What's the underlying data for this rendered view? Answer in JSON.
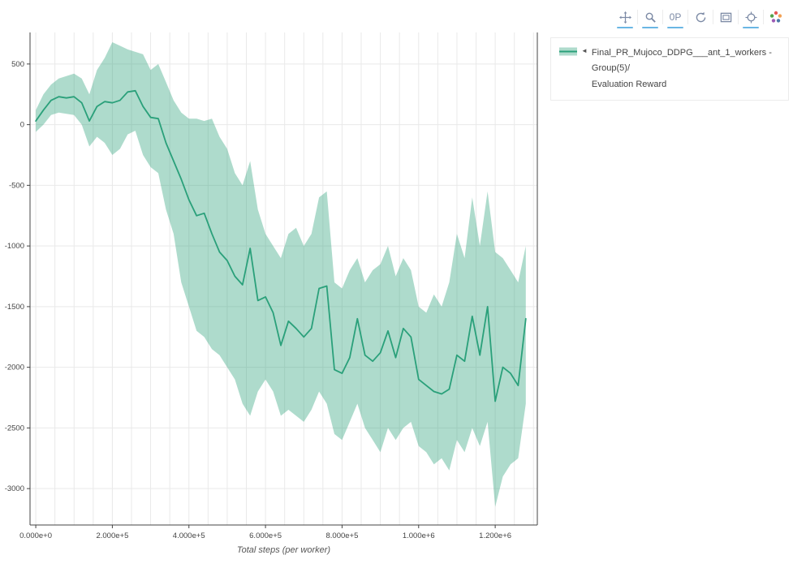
{
  "toolbar": {
    "icons": [
      {
        "name": "pan",
        "active": true
      },
      {
        "name": "box-zoom",
        "active": true
      },
      {
        "name": "zoom-in-out",
        "active": true,
        "text": "0P"
      },
      {
        "name": "autoscale",
        "active": false
      },
      {
        "name": "save-image",
        "active": false
      },
      {
        "name": "spikelines",
        "active": true
      },
      {
        "name": "plotly-logo",
        "active": false
      }
    ]
  },
  "legend": {
    "toggle_icon": "◄",
    "label_line1": "Final_PR_Mujoco_DDPG___ant_1_workers - Group(5)/",
    "label_line2": "Evaluation Reward"
  },
  "chart_data": {
    "type": "line",
    "title": "",
    "xlabel": "Total steps (per worker)",
    "ylabel": "",
    "legend_position": "right",
    "grid": true,
    "xlim": [
      -15000,
      1310000
    ],
    "ylim": [
      -3300,
      760
    ],
    "x_gridline_step": 50000,
    "xticks": {
      "values": [
        0,
        200000,
        400000,
        600000,
        800000,
        1000000,
        1200000
      ],
      "labels": [
        "0.000e+0",
        "2.000e+5",
        "4.000e+5",
        "6.000e+5",
        "8.000e+5",
        "1.000e+6",
        "1.200e+6"
      ]
    },
    "yticks": {
      "values": [
        500,
        0,
        -500,
        -1000,
        -1500,
        -2000,
        -2500,
        -3000
      ],
      "labels": [
        "500",
        "0",
        "-500",
        "-1000",
        "-1500",
        "-2000",
        "-2500",
        "-3000"
      ]
    },
    "colors": {
      "line": "#2aa07a",
      "band": "rgba(42,160,122,0.38)",
      "grid": "#e9e9e9",
      "axis": "#444444",
      "tick_text": "#444444",
      "axis_title": "#555555"
    },
    "series": [
      {
        "name": "Evaluation Reward",
        "x": [
          0,
          20000,
          40000,
          60000,
          80000,
          100000,
          120000,
          140000,
          160000,
          180000,
          200000,
          220000,
          240000,
          260000,
          280000,
          300000,
          320000,
          340000,
          360000,
          380000,
          400000,
          420000,
          440000,
          460000,
          480000,
          500000,
          520000,
          540000,
          560000,
          580000,
          600000,
          620000,
          640000,
          660000,
          680000,
          700000,
          720000,
          740000,
          760000,
          780000,
          800000,
          820000,
          840000,
          860000,
          880000,
          900000,
          920000,
          940000,
          960000,
          980000,
          1000000,
          1020000,
          1040000,
          1060000,
          1080000,
          1100000,
          1120000,
          1140000,
          1160000,
          1180000,
          1200000,
          1220000,
          1240000,
          1260000,
          1280000
        ],
        "mean": [
          30,
          120,
          200,
          230,
          220,
          230,
          180,
          30,
          150,
          190,
          180,
          200,
          270,
          280,
          150,
          60,
          50,
          -150,
          -300,
          -450,
          -620,
          -750,
          -730,
          -900,
          -1050,
          -1120,
          -1250,
          -1320,
          -1020,
          -1450,
          -1420,
          -1550,
          -1820,
          -1620,
          -1680,
          -1750,
          -1680,
          -1350,
          -1330,
          -2020,
          -2050,
          -1920,
          -1600,
          -1900,
          -1950,
          -1880,
          -1700,
          -1920,
          -1680,
          -1750,
          -2100,
          -2150,
          -2200,
          -2220,
          -2180,
          -1900,
          -1950,
          -1580,
          -1900,
          -1500,
          -2280,
          -2000,
          -2050,
          -2150,
          -1600
        ],
        "upper": [
          120,
          250,
          330,
          380,
          400,
          420,
          380,
          250,
          450,
          550,
          680,
          650,
          620,
          600,
          580,
          450,
          500,
          350,
          200,
          100,
          50,
          50,
          30,
          50,
          -100,
          -200,
          -400,
          -500,
          -300,
          -700,
          -900,
          -1000,
          -1100,
          -900,
          -850,
          -1000,
          -900,
          -600,
          -550,
          -1300,
          -1350,
          -1200,
          -1100,
          -1300,
          -1200,
          -1150,
          -1000,
          -1250,
          -1100,
          -1200,
          -1500,
          -1550,
          -1400,
          -1500,
          -1300,
          -900,
          -1100,
          -600,
          -1000,
          -550,
          -1050,
          -1100,
          -1200,
          -1300,
          -1000
        ],
        "lower": [
          -60,
          0,
          80,
          100,
          90,
          80,
          0,
          -180,
          -100,
          -150,
          -250,
          -200,
          -80,
          -50,
          -250,
          -350,
          -400,
          -700,
          -900,
          -1300,
          -1500,
          -1700,
          -1750,
          -1850,
          -1900,
          -2000,
          -2100,
          -2300,
          -2400,
          -2200,
          -2100,
          -2200,
          -2400,
          -2350,
          -2400,
          -2450,
          -2350,
          -2200,
          -2300,
          -2550,
          -2600,
          -2450,
          -2300,
          -2500,
          -2600,
          -2700,
          -2500,
          -2600,
          -2500,
          -2450,
          -2650,
          -2700,
          -2800,
          -2750,
          -2850,
          -2600,
          -2700,
          -2500,
          -2650,
          -2450,
          -3150,
          -2900,
          -2800,
          -2750,
          -2300
        ]
      }
    ]
  }
}
